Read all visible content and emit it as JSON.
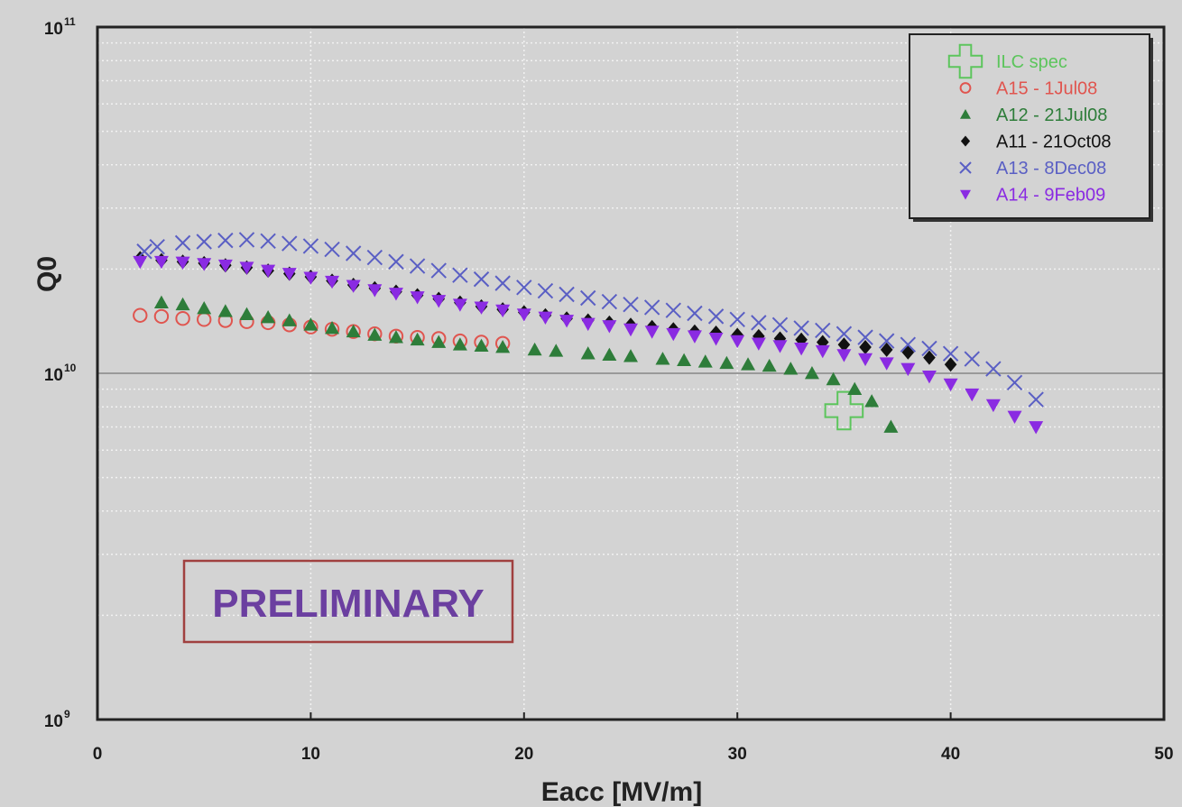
{
  "chart_data": {
    "type": "scatter",
    "title": "",
    "xlabel": "Eacc [MV/m]",
    "ylabel": "Q0",
    "xlim": [
      0,
      50
    ],
    "ylim": [
      1000000000.0,
      100000000000.0
    ],
    "y_scale": "log",
    "grid": true,
    "legend_position": "top-right",
    "x_ticks": [
      "0",
      "10",
      "20",
      "30",
      "40",
      "50"
    ],
    "y_ticks": [
      {
        "base": "10",
        "exp": "9",
        "value": 1000000000.0
      },
      {
        "base": "10",
        "exp": "10",
        "value": 10000000000.0
      },
      {
        "base": "10",
        "exp": "11",
        "value": 100000000000.0
      }
    ],
    "annotation": "PRELIMINARY",
    "reference_line": 10000000000.0,
    "series": [
      {
        "name": "ILC spec",
        "marker": "cross-open",
        "color": "#5cc55c",
        "x": [
          35
        ],
        "y": [
          7800000000.0
        ]
      },
      {
        "name": "A15 - 1Jul08",
        "marker": "circle-open",
        "color": "#e0554f",
        "x": [
          2,
          3,
          4,
          5,
          6,
          7,
          8,
          9,
          10,
          11,
          12,
          13,
          14,
          15,
          16,
          17,
          18,
          19
        ],
        "y": [
          14700000000.0,
          14600000000.0,
          14400000000.0,
          14300000000.0,
          14200000000.0,
          14100000000.0,
          14000000000.0,
          13800000000.0,
          13600000000.0,
          13400000000.0,
          13200000000.0,
          13000000000.0,
          12800000000.0,
          12700000000.0,
          12600000000.0,
          12400000000.0,
          12300000000.0,
          12200000000.0
        ]
      },
      {
        "name": "A12 - 21Jul08",
        "marker": "triangle-up",
        "color": "#2e7d3a",
        "x": [
          3,
          4,
          5,
          6,
          7,
          8,
          9,
          10,
          11,
          12,
          13,
          14,
          15,
          16,
          17,
          18,
          19,
          20.5,
          21.5,
          23,
          24,
          25,
          26.5,
          27.5,
          28.5,
          29.5,
          30.5,
          31.5,
          32.5,
          33.5,
          34.5,
          35.5,
          36.3,
          37.2
        ],
        "y": [
          16000000000.0,
          15800000000.0,
          15400000000.0,
          15100000000.0,
          14800000000.0,
          14500000000.0,
          14200000000.0,
          13800000000.0,
          13500000000.0,
          13200000000.0,
          12900000000.0,
          12700000000.0,
          12500000000.0,
          12300000000.0,
          12100000000.0,
          12000000000.0,
          11900000000.0,
          11700000000.0,
          11600000000.0,
          11400000000.0,
          11300000000.0,
          11200000000.0,
          11000000000.0,
          10900000000.0,
          10800000000.0,
          10700000000.0,
          10600000000.0,
          10500000000.0,
          10300000000.0,
          10000000000.0,
          9600000000.0,
          9000000000.0,
          8300000000.0,
          7000000000.0
        ]
      },
      {
        "name": "A11 - 21Oct08",
        "marker": "diamond",
        "color": "#111111",
        "x": [
          2,
          3,
          4,
          5,
          6,
          7,
          8,
          9,
          10,
          11,
          12,
          13,
          14,
          15,
          16,
          17,
          18,
          19,
          20,
          21,
          22,
          23,
          24,
          25,
          26,
          27,
          28,
          29,
          30,
          31,
          32,
          33,
          34,
          35,
          36,
          37,
          38,
          39,
          40
        ],
        "y": [
          21500000000.0,
          21200000000.0,
          21000000000.0,
          20800000000.0,
          20500000000.0,
          20200000000.0,
          19800000000.0,
          19400000000.0,
          19000000000.0,
          18500000000.0,
          18000000000.0,
          17600000000.0,
          17200000000.0,
          16800000000.0,
          16400000000.0,
          16000000000.0,
          15600000000.0,
          15300000000.0,
          15000000000.0,
          14700000000.0,
          14400000000.0,
          14200000000.0,
          14000000000.0,
          13800000000.0,
          13600000000.0,
          13400000000.0,
          13200000000.0,
          13100000000.0,
          12900000000.0,
          12800000000.0,
          12600000000.0,
          12500000000.0,
          12300000000.0,
          12100000000.0,
          11900000000.0,
          11700000000.0,
          11500000000.0,
          11100000000.0,
          10600000000.0
        ]
      },
      {
        "name": "A13 - 8Dec08",
        "marker": "x-cross",
        "color": "#5a5fc4",
        "x": [
          2.2,
          2.8,
          4,
          5,
          6,
          7,
          8,
          9,
          10,
          11,
          12,
          13,
          14,
          15,
          16,
          17,
          18,
          19,
          20,
          21,
          22,
          23,
          24,
          25,
          26,
          27,
          28,
          29,
          30,
          31,
          32,
          33,
          34,
          35,
          36,
          37,
          38,
          39,
          40,
          41,
          42,
          43,
          44
        ],
        "y": [
          22500000000.0,
          23200000000.0,
          23800000000.0,
          24000000000.0,
          24200000000.0,
          24300000000.0,
          24100000000.0,
          23700000000.0,
          23300000000.0,
          22800000000.0,
          22200000000.0,
          21600000000.0,
          21000000000.0,
          20400000000.0,
          19800000000.0,
          19200000000.0,
          18700000000.0,
          18200000000.0,
          17700000000.0,
          17300000000.0,
          16900000000.0,
          16500000000.0,
          16100000000.0,
          15800000000.0,
          15500000000.0,
          15200000000.0,
          14900000000.0,
          14600000000.0,
          14300000000.0,
          14000000000.0,
          13800000000.0,
          13500000000.0,
          13300000000.0,
          13000000000.0,
          12700000000.0,
          12400000000.0,
          12100000000.0,
          11800000000.0,
          11400000000.0,
          11000000000.0,
          10300000000.0,
          9400000000.0,
          8400000000.0
        ]
      },
      {
        "name": "A14 - 9Feb09",
        "marker": "triangle-down",
        "color": "#8a2be2",
        "x": [
          2,
          3,
          4,
          5,
          6,
          7,
          8,
          9,
          10,
          11,
          12,
          13,
          14,
          15,
          16,
          17,
          18,
          19,
          20,
          21,
          22,
          23,
          24,
          25,
          26,
          27,
          28,
          29,
          30,
          31,
          32,
          33,
          34,
          35,
          36,
          37,
          38,
          39,
          40,
          41,
          42,
          43,
          44
        ],
        "y": [
          21000000000.0,
          21000000000.0,
          20900000000.0,
          20700000000.0,
          20500000000.0,
          20200000000.0,
          19800000000.0,
          19400000000.0,
          18900000000.0,
          18400000000.0,
          17900000000.0,
          17400000000.0,
          17000000000.0,
          16600000000.0,
          16200000000.0,
          15800000000.0,
          15500000000.0,
          15200000000.0,
          14800000000.0,
          14500000000.0,
          14200000000.0,
          13900000000.0,
          13700000000.0,
          13400000000.0,
          13200000000.0,
          13000000000.0,
          12800000000.0,
          12600000000.0,
          12400000000.0,
          12200000000.0,
          12000000000.0,
          11800000000.0,
          11600000000.0,
          11300000000.0,
          11000000000.0,
          10700000000.0,
          10300000000.0,
          9800000000.0,
          9300000000.0,
          8700000000.0,
          8100000000.0,
          7500000000.0,
          7000000000.0
        ]
      }
    ]
  }
}
